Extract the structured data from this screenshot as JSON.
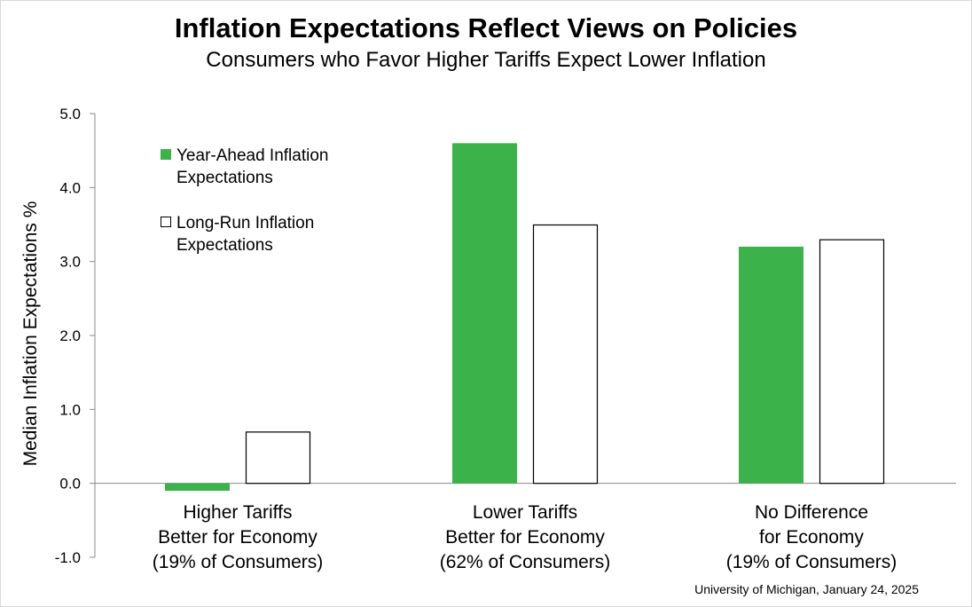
{
  "title": "Inflation Expectations Reflect Views on Policies",
  "subtitle": "Consumers who Favor Higher Tariffs Expect Lower Inflation",
  "source": "University of Michigan, January 24, 2025",
  "colors": {
    "year_ahead": "#3bb34a",
    "long_run": "#ffffff",
    "outline": "#000000"
  },
  "chart_data": {
    "type": "bar",
    "title": "Inflation Expectations Reflect Views on Policies",
    "subtitle": "Consumers who Favor Higher Tariffs Expect Lower Inflation",
    "xlabel": "",
    "ylabel": "Median Inflation Expectations %",
    "ylim": [
      -1.0,
      5.0
    ],
    "yticks": [
      "-1.0",
      "0.0",
      "1.0",
      "2.0",
      "3.0",
      "4.0",
      "5.0"
    ],
    "grid": false,
    "legend_position": "top-left",
    "categories": [
      [
        "Higher Tariffs",
        "Better for Economy",
        "(19% of Consumers)"
      ],
      [
        "Lower Tariffs",
        "Better for Economy",
        "(62% of Consumers)"
      ],
      [
        "No Difference",
        "for Economy",
        "(19% of Consumers)"
      ]
    ],
    "series": [
      {
        "name": [
          "Year-Ahead Inflation",
          "Expectations"
        ],
        "values": [
          -0.1,
          4.6,
          3.2
        ]
      },
      {
        "name": [
          "Long-Run Inflation",
          "Expectations"
        ],
        "values": [
          0.7,
          3.5,
          3.3
        ]
      }
    ]
  }
}
